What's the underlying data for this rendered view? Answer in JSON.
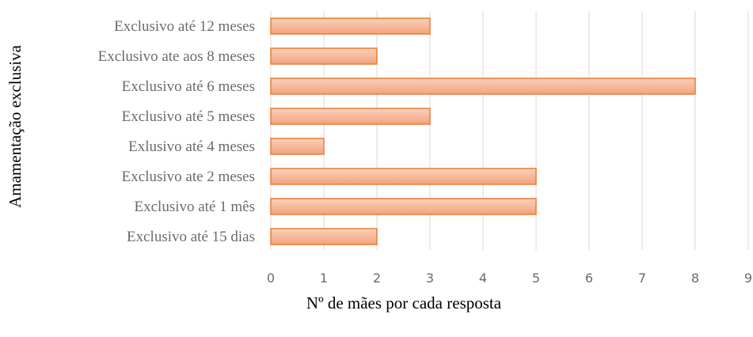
{
  "chart_data": {
    "type": "bar",
    "orientation": "horizontal",
    "title": "",
    "xlabel": "Nº de mães por cada resposta",
    "ylabel": "Amamentação exclusiva",
    "categories": [
      "Exclusivo até 12 meses",
      "Exclusivo ate aos 8 meses",
      "Exclusivo até 6 meses",
      "Exclusivo até 5 meses",
      "Exlusivo até 4 meses",
      "Exclusivo ate 2 meses",
      "Exclusivo até 1 mês",
      "Exclusivo até 15 dias"
    ],
    "values": [
      3,
      2,
      8,
      3,
      1,
      5,
      5,
      2
    ],
    "xlim": [
      0,
      9
    ],
    "xticks": [
      "0",
      "1",
      "2",
      "3",
      "4",
      "5",
      "6",
      "7",
      "8",
      "9"
    ],
    "grid": "vertical",
    "legend": "none",
    "colors": {
      "bar_fill_top": "#f9d1bd",
      "bar_fill_bottom": "#f4a27c",
      "bar_stroke": "#ed7d31",
      "grid": "#d9d9d9",
      "tick_text": "#6b6b6b",
      "title_text": "#000000"
    }
  }
}
